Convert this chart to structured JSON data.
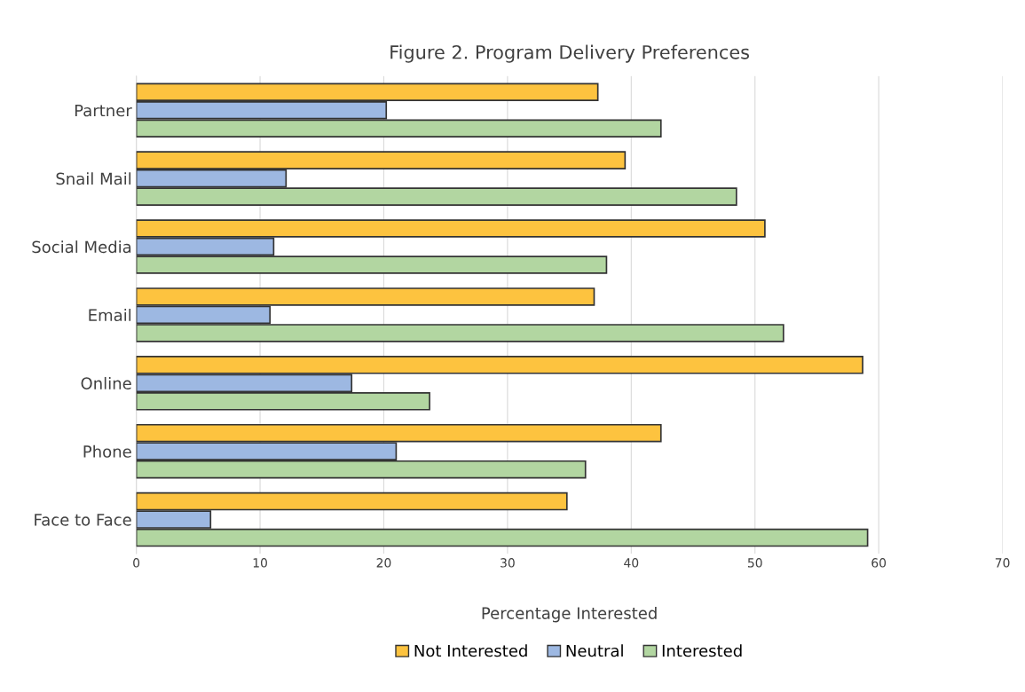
{
  "chart_data": {
    "type": "bar",
    "orientation": "horizontal",
    "title": "Figure 2. Program Delivery Preferences",
    "xlabel": "Percentage Interested",
    "categories": [
      "Partner",
      "Snail Mail",
      "Social Media",
      "Email",
      "Online",
      "Phone",
      "Face to Face"
    ],
    "series": [
      {
        "name": "Not Interested",
        "color": "#fdc33f",
        "values": [
          37.3,
          39.5,
          50.8,
          37.0,
          58.7,
          42.4,
          34.8
        ]
      },
      {
        "name": "Neutral",
        "color": "#9db8e2",
        "values": [
          20.2,
          12.1,
          11.1,
          10.8,
          17.4,
          21.0,
          6.0
        ]
      },
      {
        "name": "Interested",
        "color": "#b2d6a1",
        "values": [
          42.4,
          48.5,
          38.0,
          52.3,
          23.7,
          36.3,
          59.1
        ]
      }
    ],
    "xlim": [
      0,
      70
    ],
    "xticks": [
      0,
      10,
      20,
      30,
      40,
      50,
      60,
      70
    ],
    "grid": "x",
    "legend": "bottom"
  }
}
